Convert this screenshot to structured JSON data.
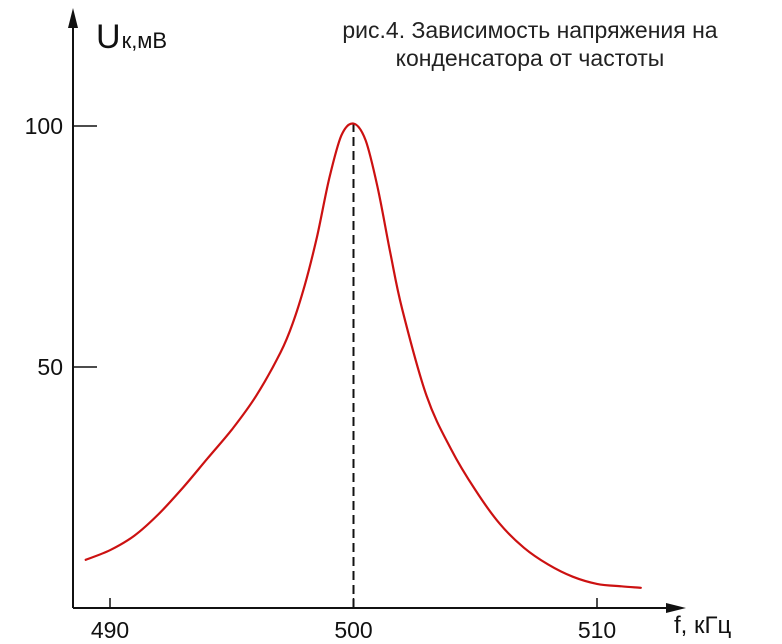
{
  "caption": {
    "line1": "рис.4. Зависимость напряжения на",
    "line2": "конденсатора от частоты"
  },
  "axes": {
    "y_symbol": "U",
    "y_unit": "к,мВ",
    "x_label": "f, кГц"
  },
  "chart_data": {
    "type": "line",
    "title": "рис.4. Зависимость напряжения на конденсатора от частоты",
    "xlabel": "f, кГц",
    "ylabel": "Uк,мВ",
    "xlim": [
      487.2,
      513.8
    ],
    "ylim": [
      0,
      110
    ],
    "xticks": [
      490,
      500,
      510
    ],
    "yticks": [
      50,
      100
    ],
    "grid": false,
    "legend": "none",
    "marker_line": {
      "x": 500,
      "style": "dashed",
      "color": "#111111"
    },
    "series": [
      {
        "color": "#cc1111",
        "x": [
          489.0,
          490.0,
          491.0,
          492.0,
          493.0,
          494.0,
          495.0,
          496.0,
          497.0,
          497.5,
          498.0,
          498.5,
          499.0,
          499.5,
          500.0,
          500.5,
          501.0,
          501.5,
          502.0,
          503.0,
          504.0,
          505.0,
          506.0,
          507.0,
          508.0,
          509.0,
          510.0,
          511.0,
          511.8
        ],
        "y": [
          10.0,
          12.0,
          15.0,
          19.5,
          25.0,
          31.0,
          37.0,
          44.0,
          53.0,
          59.0,
          67.0,
          77.0,
          89.0,
          98.0,
          100.5,
          97.0,
          87.0,
          74.0,
          62.0,
          44.0,
          33.0,
          24.5,
          17.5,
          12.5,
          9.0,
          6.5,
          5.0,
          4.5,
          4.2
        ]
      }
    ]
  }
}
